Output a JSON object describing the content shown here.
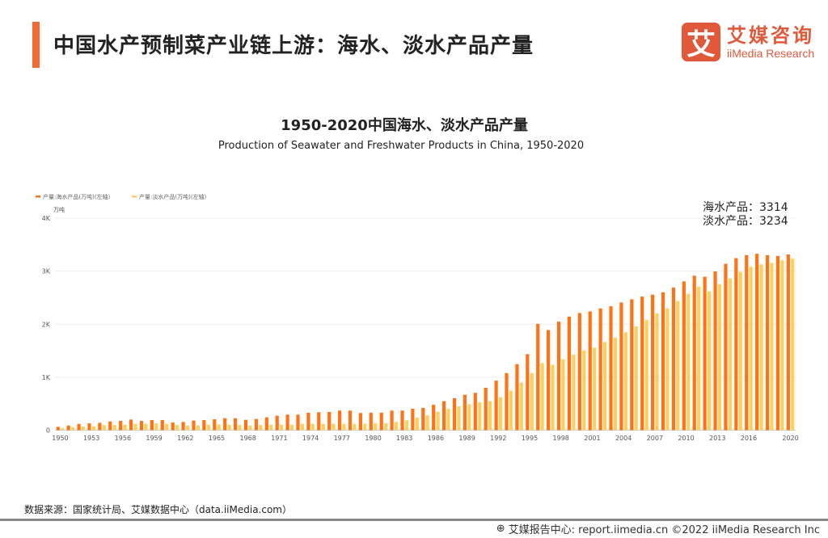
{
  "header": {
    "title": "中国水产预制菜产业链上游：海水、淡水产品产量"
  },
  "logo": {
    "mark": "艾",
    "cn": "艾媒咨询",
    "en": "iiMedia Research"
  },
  "annotations": {
    "sea": "海水产品：3314",
    "fresh": "淡水产品：3234"
  },
  "source": "数据来源：国家统计局、艾媒数据中心（data.iiMedia.com）",
  "footer": {
    "text": "艾媒报告中心: report.iimedia.cn   ©2022  iiMedia Research  Inc",
    "icon": "report-center-icon"
  },
  "colors": {
    "sea": "#ff7215",
    "fresh": "#ffce5c",
    "accent": "#f26a35"
  },
  "chart_data": {
    "type": "bar",
    "title": "1950-2020中国海水、淡水产品产量",
    "subtitle": "Production of Seawater and Freshwater Products in China, 1950-2020",
    "ylabel": "万吨",
    "ylim": [
      0,
      4000
    ],
    "yticks": [
      "0",
      "1K",
      "2K",
      "3K",
      "4K"
    ],
    "legend": [
      "产量:海水产品(万吨)(左轴)",
      "产量:淡水产品(万吨)(左轴)"
    ],
    "legend_position": "top-left",
    "xtick_years": [
      1950,
      1953,
      1956,
      1959,
      1962,
      1965,
      1968,
      1971,
      1974,
      1977,
      1980,
      1983,
      1986,
      1989,
      1992,
      1995,
      1998,
      2001,
      2004,
      2007,
      2010,
      2013,
      2016,
      2020
    ],
    "categories": [
      1950,
      1951,
      1952,
      1953,
      1954,
      1955,
      1956,
      1957,
      1958,
      1959,
      1960,
      1961,
      1962,
      1963,
      1964,
      1965,
      1966,
      1967,
      1968,
      1969,
      1970,
      1971,
      1972,
      1973,
      1974,
      1975,
      1976,
      1977,
      1978,
      1979,
      1980,
      1981,
      1982,
      1983,
      1984,
      1985,
      1986,
      1987,
      1988,
      1989,
      1990,
      1991,
      1992,
      1993,
      1994,
      1995,
      1996,
      1997,
      1998,
      1999,
      2000,
      2001,
      2002,
      2003,
      2004,
      2005,
      2006,
      2007,
      2008,
      2009,
      2010,
      2011,
      2012,
      2013,
      2014,
      2015,
      2016,
      2017,
      2018,
      2019,
      2020
    ],
    "series": [
      {
        "name": "产量:海水产品(万吨)(左轴)",
        "values": [
          62,
          87,
          118,
          128,
          138,
          164,
          174,
          200,
          174,
          190,
          190,
          144,
          154,
          180,
          190,
          205,
          226,
          226,
          195,
          210,
          241,
          272,
          292,
          292,
          328,
          338,
          344,
          369,
          369,
          323,
          328,
          328,
          369,
          369,
          405,
          419,
          478,
          546,
          602,
          668,
          704,
          801,
          934,
          1077,
          1245,
          1434,
          2005,
          1888,
          2046,
          2143,
          2209,
          2240,
          2296,
          2337,
          2408,
          2469,
          2520,
          2556,
          2602,
          2689,
          2806,
          2913,
          2893,
          2995,
          3138,
          3245,
          3301,
          3327,
          3301,
          3286,
          3314
        ]
      },
      {
        "name": "产量:淡水产品(万吨)(左轴)",
        "values": [
          36,
          56,
          67,
          72,
          97,
          97,
          103,
          118,
          118,
          128,
          118,
          97,
          87,
          92,
          103,
          108,
          103,
          97,
          87,
          97,
          103,
          103,
          103,
          118,
          118,
          118,
          118,
          118,
          118,
          118,
          128,
          133,
          154,
          185,
          236,
          279,
          347,
          403,
          449,
          490,
          526,
          546,
          622,
          745,
          898,
          1077,
          1265,
          1234,
          1337,
          1423,
          1505,
          1556,
          1663,
          1745,
          1847,
          1959,
          2077,
          2204,
          2296,
          2434,
          2571,
          2704,
          2617,
          2755,
          2862,
          2985,
          3082,
          3128,
          3153,
          3204,
          3234
        ]
      }
    ]
  }
}
